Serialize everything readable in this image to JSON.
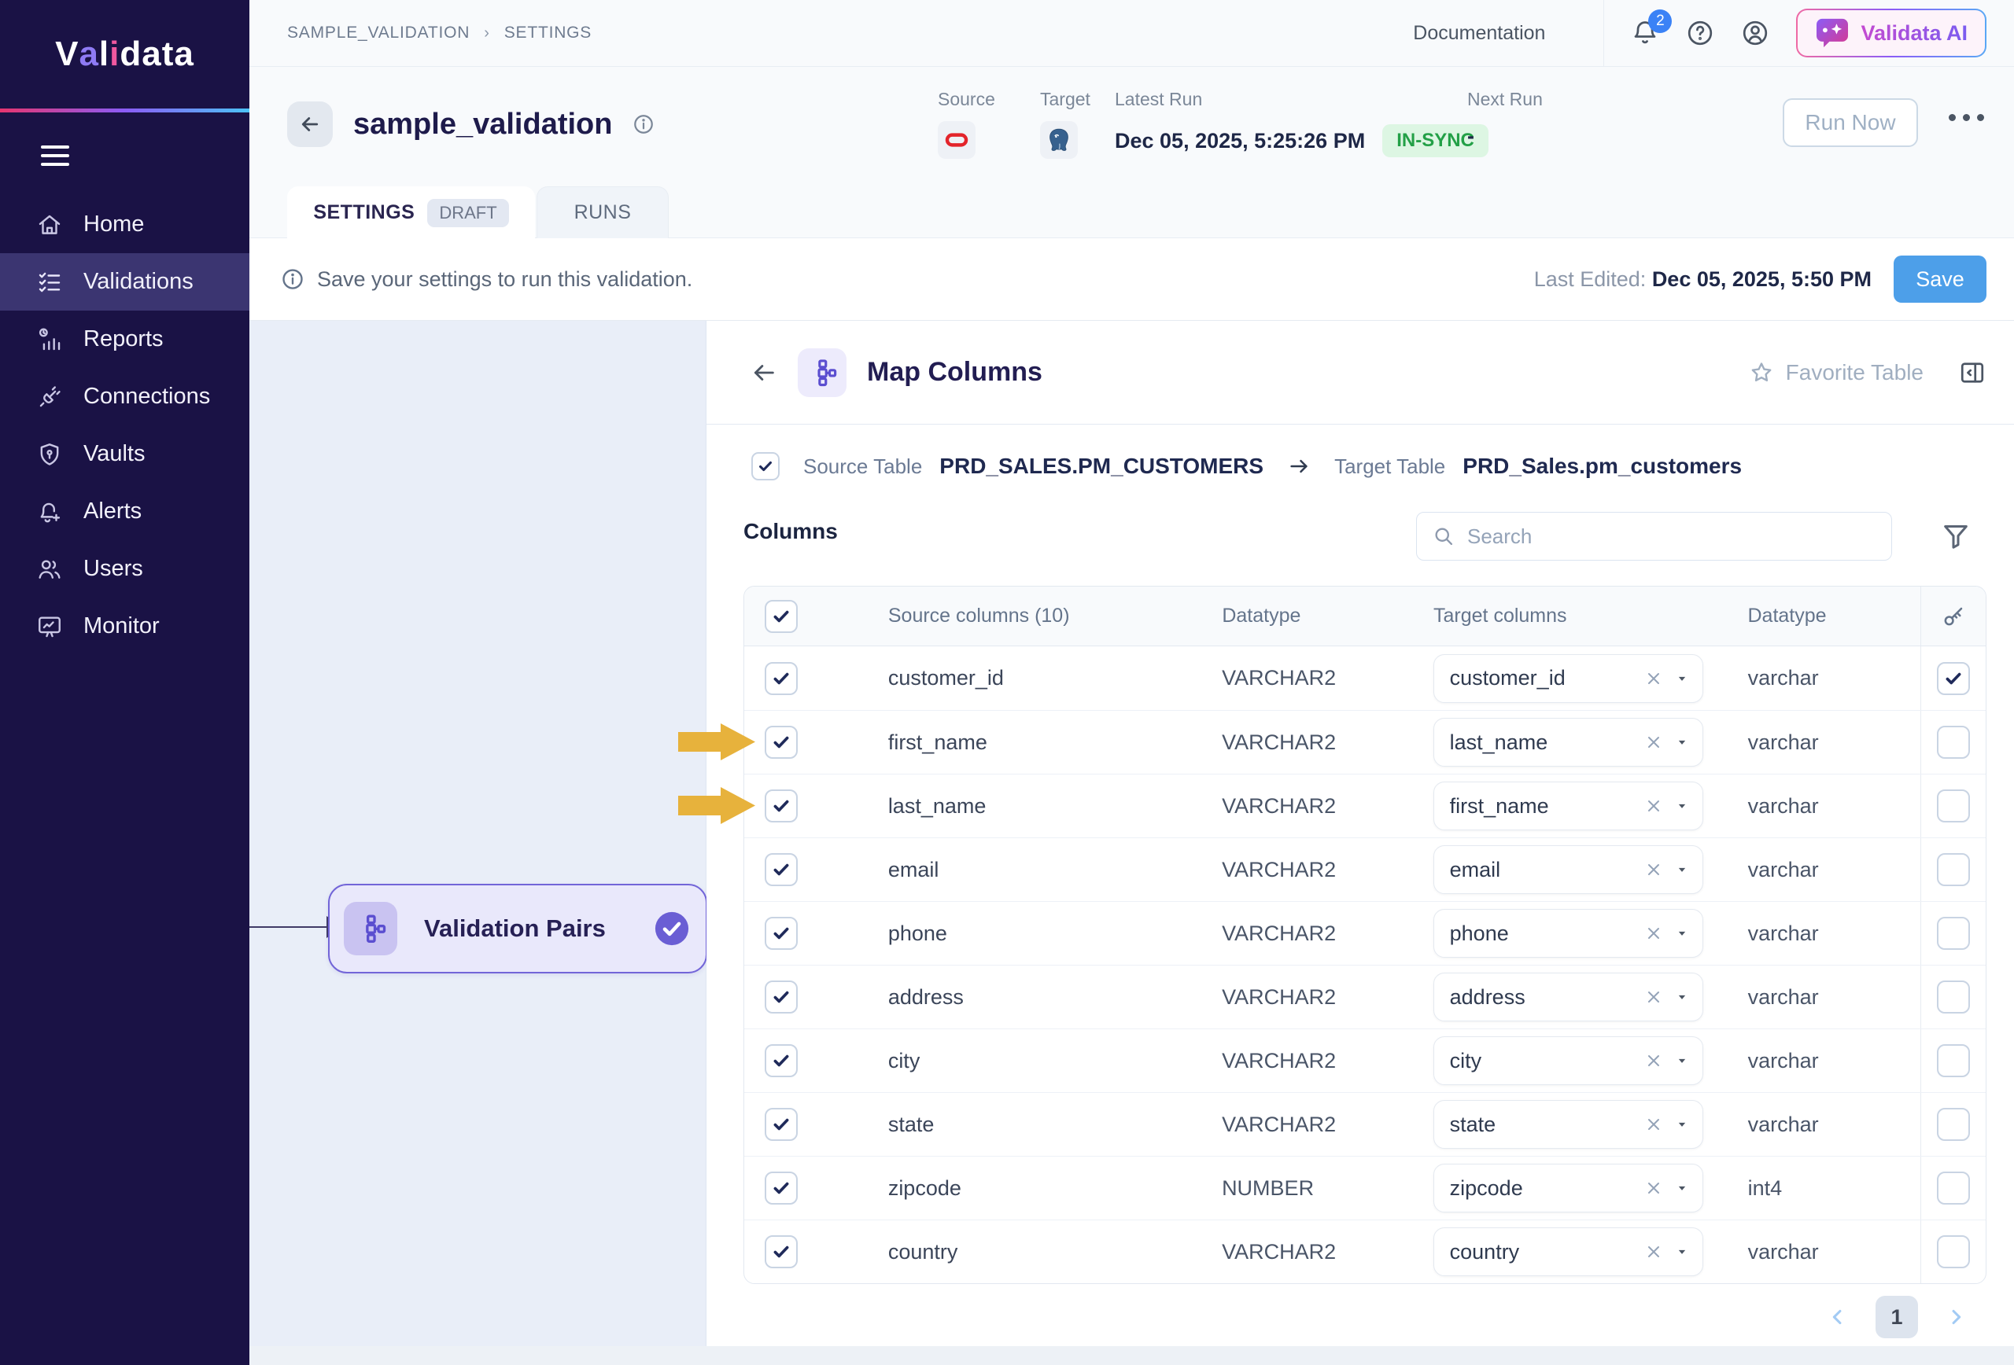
{
  "brand": {
    "logo": "Validata"
  },
  "topbar": {
    "breadcrumb": [
      "SAMPLE_VALIDATION",
      "SETTINGS"
    ],
    "documentation_label": "Documentation",
    "notification_count": "2",
    "ai_button_label": "Validata AI"
  },
  "sidebar": {
    "items": [
      {
        "label": "Home",
        "icon": "home-icon",
        "active": false
      },
      {
        "label": "Validations",
        "icon": "validations-icon",
        "active": true
      },
      {
        "label": "Reports",
        "icon": "reports-icon",
        "active": false
      },
      {
        "label": "Connections",
        "icon": "connections-icon",
        "active": false
      },
      {
        "label": "Vaults",
        "icon": "vaults-icon",
        "active": false
      },
      {
        "label": "Alerts",
        "icon": "alerts-icon",
        "active": false
      },
      {
        "label": "Users",
        "icon": "users-icon",
        "active": false
      },
      {
        "label": "Monitor",
        "icon": "monitor-icon",
        "active": false
      }
    ]
  },
  "header": {
    "title": "sample_validation",
    "source_label": "Source",
    "target_label": "Target",
    "latest_run_label": "Latest Run",
    "latest_run_value": "Dec 05, 2025, 5:25:26 PM",
    "sync_badge": "IN-SYNC",
    "next_run_label": "Next Run",
    "next_run_value": "-",
    "run_now_label": "Run Now"
  },
  "tabs": {
    "settings_label": "SETTINGS",
    "draft_badge": "DRAFT",
    "runs_label": "RUNS"
  },
  "noticebar": {
    "message": "Save your settings to run this validation.",
    "last_edited_label": "Last Edited:",
    "last_edited_value": "Dec 05, 2025, 5:50 PM",
    "save_label": "Save"
  },
  "canvas": {
    "node_label": "Validation Pairs"
  },
  "panel": {
    "title": "Map Columns",
    "favorite_label": "Favorite Table",
    "source_table_label": "Source Table",
    "source_table_value": "PRD_SALES.PM_CUSTOMERS",
    "target_table_label": "Target Table",
    "target_table_value": "PRD_Sales.pm_customers",
    "columns_heading": "Columns",
    "search_placeholder": "Search"
  },
  "table": {
    "headers": {
      "source": "Source columns (10)",
      "source_datatype": "Datatype",
      "target": "Target columns",
      "target_datatype": "Datatype"
    },
    "rows": [
      {
        "source": "customer_id",
        "source_datatype": "VARCHAR2",
        "target": "customer_id",
        "target_datatype": "varchar",
        "selected": true,
        "key": true
      },
      {
        "source": "first_name",
        "source_datatype": "VARCHAR2",
        "target": "last_name",
        "target_datatype": "varchar",
        "selected": true,
        "key": false
      },
      {
        "source": "last_name",
        "source_datatype": "VARCHAR2",
        "target": "first_name",
        "target_datatype": "varchar",
        "selected": true,
        "key": false
      },
      {
        "source": "email",
        "source_datatype": "VARCHAR2",
        "target": "email",
        "target_datatype": "varchar",
        "selected": true,
        "key": false
      },
      {
        "source": "phone",
        "source_datatype": "VARCHAR2",
        "target": "phone",
        "target_datatype": "varchar",
        "selected": true,
        "key": false
      },
      {
        "source": "address",
        "source_datatype": "VARCHAR2",
        "target": "address",
        "target_datatype": "varchar",
        "selected": true,
        "key": false
      },
      {
        "source": "city",
        "source_datatype": "VARCHAR2",
        "target": "city",
        "target_datatype": "varchar",
        "selected": true,
        "key": false
      },
      {
        "source": "state",
        "source_datatype": "VARCHAR2",
        "target": "state",
        "target_datatype": "varchar",
        "selected": true,
        "key": false
      },
      {
        "source": "zipcode",
        "source_datatype": "NUMBER",
        "target": "zipcode",
        "target_datatype": "int4",
        "selected": true,
        "key": false
      },
      {
        "source": "country",
        "source_datatype": "VARCHAR2",
        "target": "country",
        "target_datatype": "varchar",
        "selected": true,
        "key": false
      }
    ]
  },
  "pagination": {
    "current_page": "1"
  },
  "annotations": {
    "arrow_row_indexes": [
      1,
      2
    ],
    "arrow_color": "#e7b23c"
  },
  "colors": {
    "accent_blue": "#4d9fe9",
    "accent_purple": "#6c5fd4",
    "status_green": "#23a047",
    "arrow_gold": "#e7b23c",
    "sidebar_bg": "#1a1245"
  }
}
